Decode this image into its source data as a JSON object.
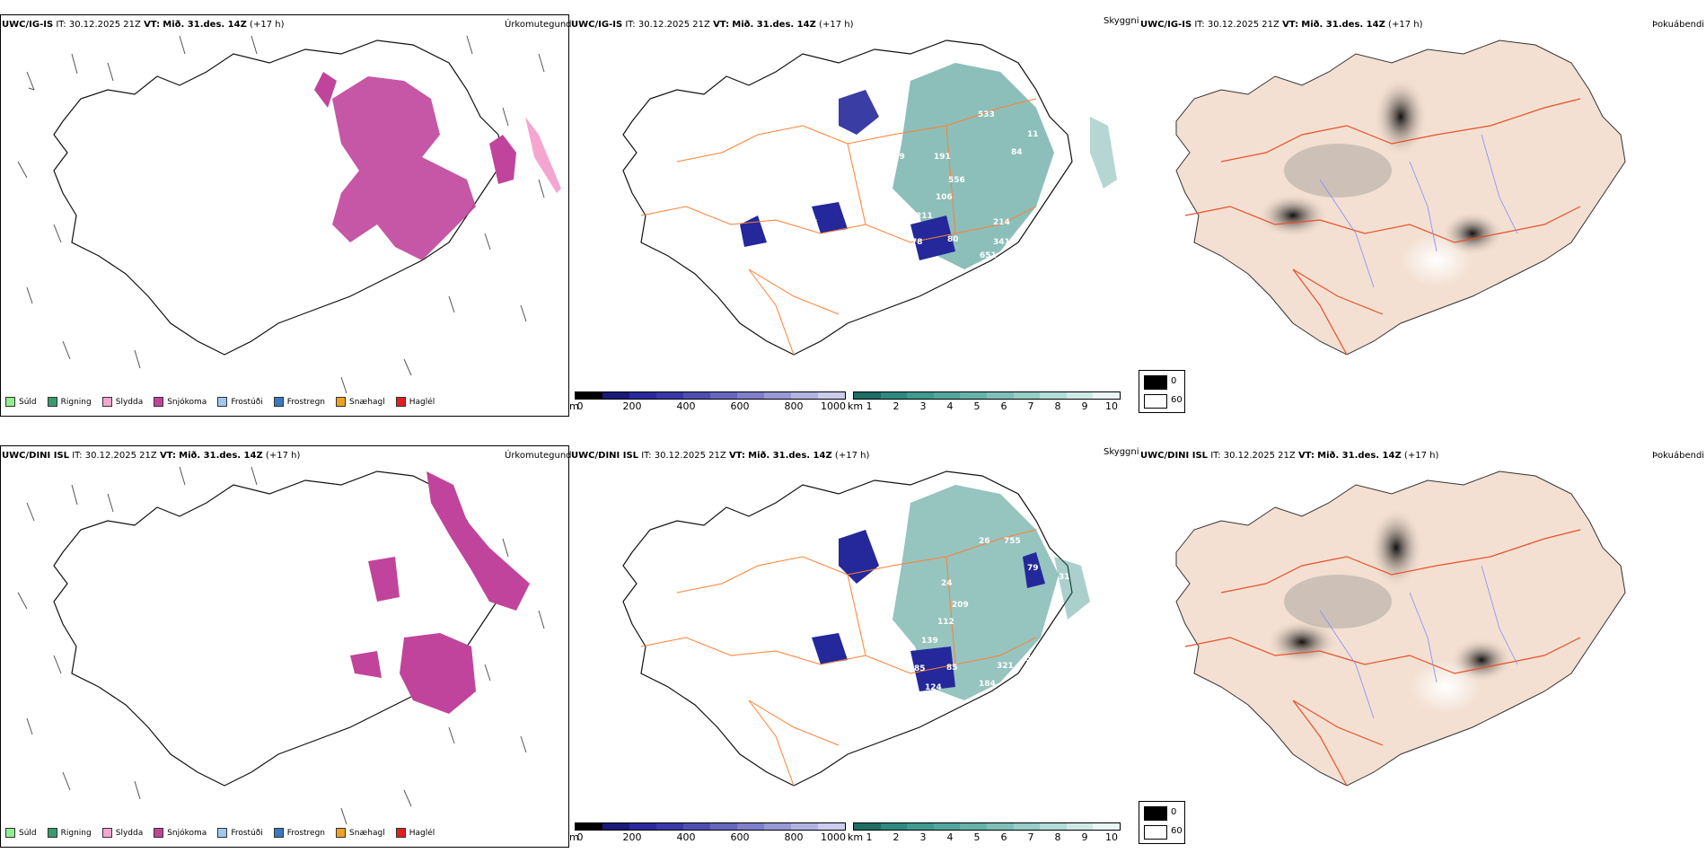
{
  "rows": [
    {
      "model": "UWC/IG-IS",
      "it": "30.12.2025 21Z",
      "vt": "Mið. 31.des. 14Z",
      "lead": "(+17 h)"
    },
    {
      "model": "UWC/DINI ISL",
      "it": "30.12.2025 21Z",
      "vt": "Mið. 31.des. 14Z",
      "lead": "(+17 h)"
    }
  ],
  "labels": {
    "it_prefix": "IT:",
    "vt_prefix": "VT:",
    "precip_type": "Úrkomutegund",
    "visibility": "Skyggni",
    "fog": "Þokuábendi"
  },
  "precip_legend": [
    {
      "label": "Súld",
      "color": "#90ee90"
    },
    {
      "label": "Rigning",
      "color": "#3a9a6e"
    },
    {
      "label": "Slydda",
      "color": "#f4a6d0"
    },
    {
      "label": "Snjókoma",
      "color": "#c0449c"
    },
    {
      "label": "Frostúði",
      "color": "#9ec9f0"
    },
    {
      "label": "Frostregn",
      "color": "#3a78c0"
    },
    {
      "label": "Snæhagl",
      "color": "#f0a020"
    },
    {
      "label": "Haglél",
      "color": "#e02020"
    }
  ],
  "vis_scale_m": {
    "unit": "m",
    "ticks": [
      "0",
      "200",
      "400",
      "600",
      "800",
      "1000"
    ]
  },
  "vis_scale_km": {
    "unit": "km",
    "ticks": [
      "1",
      "2",
      "3",
      "4",
      "5",
      "6",
      "7",
      "8",
      "9",
      "10"
    ]
  },
  "fog_box": {
    "top": "0",
    "bottom": "60"
  },
  "colors": {
    "snow": "#c0449c",
    "teal": "#2e8a80",
    "navy": "#24289a",
    "roads": "#ff7f32",
    "land": "#f3e0d2"
  },
  "vis_values_top": [
    "533",
    "11",
    "84",
    "56",
    "109",
    "191",
    "54",
    "556",
    "106",
    "211",
    "116",
    "82",
    "214",
    "79",
    "80",
    "78",
    "341",
    "651"
  ],
  "vis_values_bottom": [
    "26",
    "755",
    "79",
    "31",
    "24",
    "209",
    "112",
    "139",
    "70",
    "95",
    "78",
    "38",
    "85",
    "85",
    "321",
    "511",
    "184",
    "124"
  ]
}
